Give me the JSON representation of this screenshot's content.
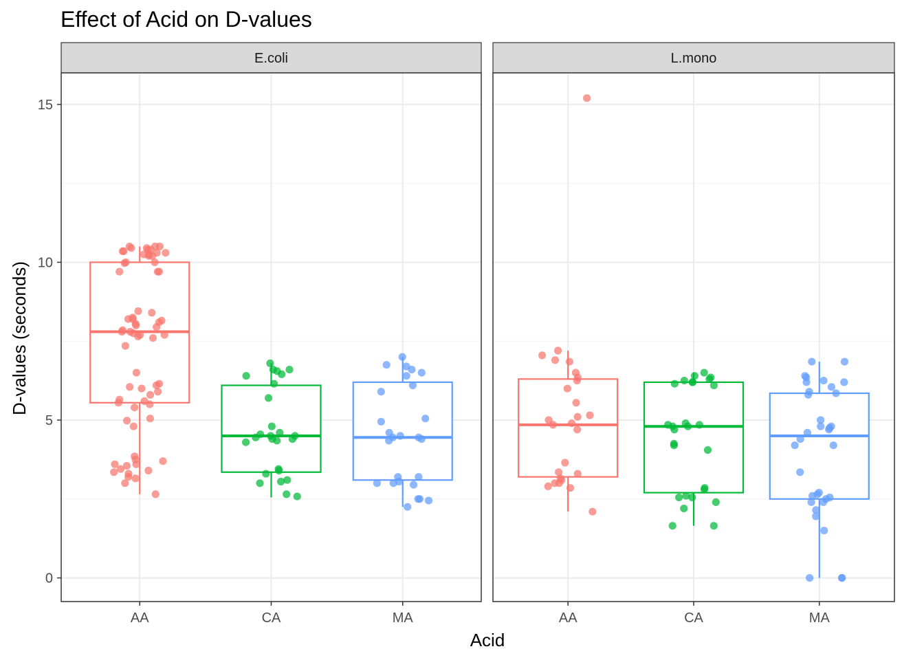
{
  "chart_data": {
    "type": "box",
    "title": "Effect of Acid on D-values",
    "xlabel": "Acid",
    "ylabel": "D-values (seconds)",
    "ylim": [
      -0.75,
      16
    ],
    "yticks": [
      0,
      5,
      10,
      15
    ],
    "categories": [
      "AA",
      "CA",
      "MA"
    ],
    "grid": true,
    "legend": "none",
    "colors": {
      "AA": "#F8766D",
      "CA": "#00BA38",
      "MA": "#619CFF"
    },
    "panels": [
      {
        "name": "E.coli",
        "boxes": [
          {
            "category": "AA",
            "min": 2.65,
            "q1": 5.55,
            "median": 7.8,
            "q3": 10.0,
            "max": 10.5
          },
          {
            "category": "CA",
            "min": 2.55,
            "q1": 3.35,
            "median": 4.5,
            "q3": 6.1,
            "max": 6.8
          },
          {
            "category": "MA",
            "min": 2.25,
            "q1": 3.1,
            "median": 4.45,
            "q3": 6.2,
            "max": 7.0
          }
        ],
        "points": {
          "AA": [
            10.4,
            10.5,
            10.45,
            10.3,
            10.25,
            10.2,
            10.35,
            10.5,
            10.4,
            10.3,
            10.2,
            10.45,
            10.5,
            10.35,
            10.25,
            10.0,
            9.97,
            10.0,
            9.7,
            9.7,
            9.7,
            8.45,
            8.4,
            8.25,
            8.2,
            8.2,
            8.15,
            8.1,
            8.05,
            8.0,
            7.95,
            7.85,
            7.8,
            7.8,
            7.75,
            7.7,
            7.7,
            7.65,
            7.6,
            7.35,
            6.5,
            6.15,
            6.1,
            6.05,
            6.0,
            5.9,
            5.8,
            5.65,
            5.6,
            5.55,
            5.5,
            5.4,
            5.05,
            4.98,
            4.8,
            3.85,
            3.75,
            3.7,
            3.6,
            3.6,
            3.55,
            3.45,
            3.4,
            3.35,
            3.3,
            3.2,
            3.15,
            3.0,
            2.65
          ],
          "CA": [
            6.8,
            6.6,
            6.6,
            6.55,
            6.45,
            6.4,
            6.15,
            5.7,
            4.8,
            4.6,
            4.55,
            4.5,
            4.5,
            4.45,
            4.4,
            4.4,
            4.35,
            4.3,
            3.45,
            3.4,
            3.3,
            3.1,
            3.05,
            3.0,
            2.65,
            2.58
          ],
          "MA": [
            7.0,
            6.75,
            6.7,
            6.6,
            6.5,
            6.4,
            6.1,
            5.9,
            5.05,
            4.95,
            4.6,
            4.5,
            4.45,
            4.45,
            4.4,
            4.35,
            3.2,
            3.2,
            3.05,
            3.0,
            3.0,
            2.95,
            2.5,
            2.5,
            2.45,
            2.25
          ]
        }
      },
      {
        "name": "L.mono",
        "boxes": [
          {
            "category": "AA",
            "min": 2.1,
            "q1": 3.2,
            "median": 4.85,
            "q3": 6.3,
            "max": 7.2
          },
          {
            "category": "CA",
            "min": 1.65,
            "q1": 2.7,
            "median": 4.8,
            "q3": 6.2,
            "max": 6.5
          },
          {
            "category": "MA",
            "min": 0.0,
            "q1": 2.5,
            "median": 4.5,
            "q3": 5.85,
            "max": 6.85
          }
        ],
        "points": {
          "AA": [
            15.2,
            7.2,
            7.05,
            6.9,
            6.85,
            6.5,
            6.35,
            6.25,
            6.0,
            5.55,
            5.15,
            5.1,
            5.0,
            4.9,
            4.85,
            4.7,
            3.65,
            3.35,
            3.3,
            3.15,
            3.1,
            3.0,
            3.0,
            2.9,
            2.85,
            2.1
          ],
          "CA": [
            6.5,
            6.4,
            6.35,
            6.3,
            6.25,
            6.2,
            6.2,
            6.15,
            6.1,
            4.9,
            4.85,
            4.85,
            4.8,
            4.8,
            4.7,
            4.25,
            4.2,
            4.05,
            2.85,
            2.8,
            2.6,
            2.55,
            2.55,
            2.4,
            2.2,
            1.65,
            1.65
          ],
          "MA": [
            6.85,
            6.85,
            6.4,
            6.35,
            6.25,
            6.2,
            6.2,
            6.05,
            5.9,
            5.85,
            5.8,
            5.0,
            4.8,
            4.8,
            4.75,
            4.7,
            4.6,
            4.4,
            4.2,
            4.2,
            3.35,
            2.7,
            2.65,
            2.6,
            2.55,
            2.5,
            2.4,
            2.4,
            2.15,
            1.95,
            1.5,
            0.0,
            0.0,
            0.0
          ]
        }
      }
    ]
  }
}
